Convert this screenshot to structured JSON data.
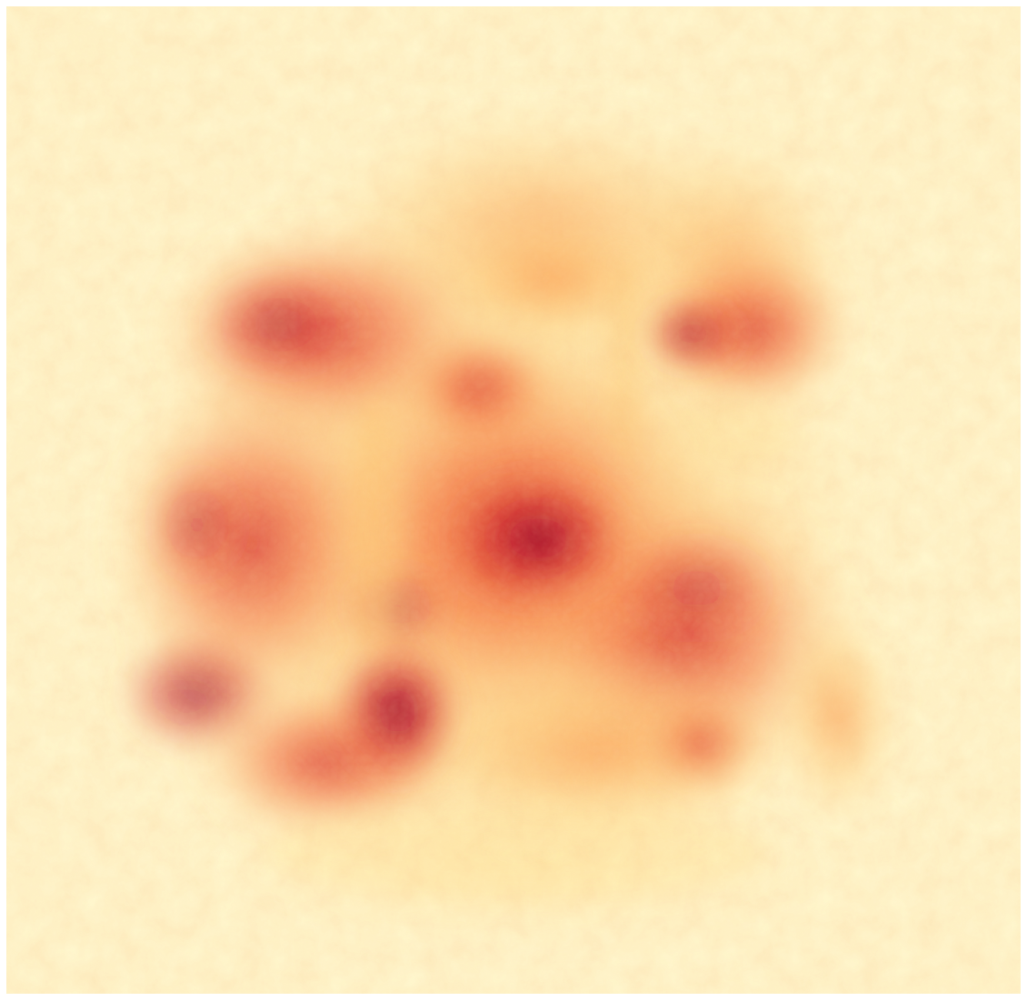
{
  "colors": {
    "background": "#fff8cf",
    "palette": [
      "#fff8cf",
      "#fee7a3",
      "#fdc977",
      "#fc9c52",
      "#f46b3e",
      "#e0392d",
      "#c0152a",
      "#8e0627"
    ]
  },
  "icons": {
    "heatmap": "heat-distribution-image"
  }
}
